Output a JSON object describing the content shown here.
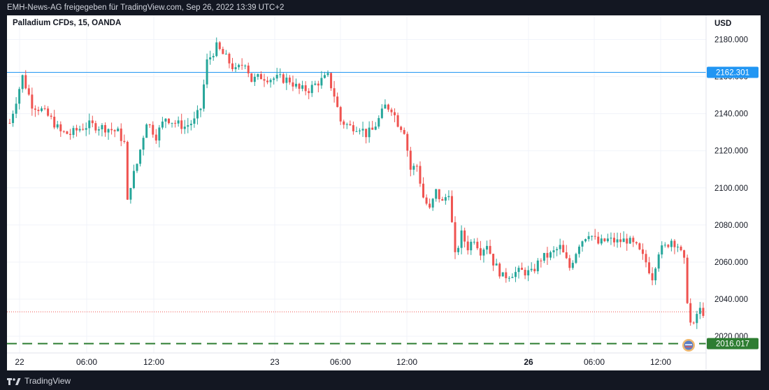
{
  "header": {
    "publish_text": "EMH-News-AG freigegeben für TradingView.com, Sep 26, 2022 13:39 UTC+2"
  },
  "chart": {
    "symbol": "Palladium CFDs, 15, OANDA",
    "currency": "USD"
  },
  "footer": {
    "brand": "TradingView"
  },
  "colors": {
    "up": "#26a69a",
    "down": "#ef5350",
    "resistance": "#2196f3",
    "support": "#2e7d32",
    "last_price": "#ef5350",
    "grid": "#f0f3fa",
    "axis_text": "#131722"
  },
  "chart_data": {
    "type": "candlestick",
    "y_axis": {
      "unit": "USD",
      "ticks": [
        2020,
        2040,
        2060,
        2080,
        2100,
        2120,
        2140,
        2160,
        2180
      ],
      "tick_labels": [
        "2020.000",
        "2040.000",
        "2060.000",
        "2080.000",
        "2100.000",
        "2120.000",
        "2140.000",
        "2160.000",
        "2180.000"
      ],
      "range": [
        2011,
        2193
      ]
    },
    "x_axis": {
      "tick_labels": [
        "22",
        "06:00",
        "12:00",
        "23",
        "06:00",
        "12:00",
        "26",
        "06:00",
        "12:00"
      ],
      "bold_ticks": [
        "26"
      ]
    },
    "levels": [
      {
        "value": 2162.301,
        "label": "2162.301",
        "style": "solid",
        "color": "#2196f3"
      },
      {
        "value": 2016.017,
        "label": "2016.017",
        "style": "dashed",
        "color": "#2e7d32"
      }
    ],
    "last_price": 2033.2,
    "price_path": [
      [
        0,
        2135
      ],
      [
        4,
        2160
      ],
      [
        7,
        2145
      ],
      [
        10,
        2142
      ],
      [
        13,
        2137
      ],
      [
        16,
        2130
      ],
      [
        19,
        2129
      ],
      [
        22,
        2132
      ],
      [
        25,
        2134
      ],
      [
        28,
        2133
      ],
      [
        31,
        2132
      ],
      [
        34,
        2130
      ],
      [
        36,
        2124
      ],
      [
        37,
        2092
      ],
      [
        38,
        2102
      ],
      [
        40,
        2113
      ],
      [
        43,
        2136
      ],
      [
        46,
        2128
      ],
      [
        49,
        2138
      ],
      [
        52,
        2135
      ],
      [
        55,
        2133
      ],
      [
        58,
        2136
      ],
      [
        60,
        2143
      ],
      [
        62,
        2168
      ],
      [
        65,
        2176
      ],
      [
        68,
        2170
      ],
      [
        71,
        2163
      ],
      [
        74,
        2168
      ],
      [
        76,
        2158
      ],
      [
        79,
        2160
      ],
      [
        82,
        2159
      ],
      [
        85,
        2159
      ],
      [
        88,
        2158
      ],
      [
        91,
        2153
      ],
      [
        94,
        2153
      ],
      [
        97,
        2157
      ],
      [
        100,
        2160
      ],
      [
        102,
        2150
      ],
      [
        104,
        2136
      ],
      [
        107,
        2133
      ],
      [
        110,
        2133
      ],
      [
        112,
        2129
      ],
      [
        114,
        2131
      ],
      [
        116,
        2137
      ],
      [
        118,
        2144
      ],
      [
        120,
        2143
      ],
      [
        122,
        2135
      ],
      [
        124,
        2131
      ],
      [
        126,
        2110
      ],
      [
        128,
        2112
      ],
      [
        130,
        2095
      ],
      [
        132,
        2088
      ],
      [
        134,
        2098
      ],
      [
        136,
        2092
      ],
      [
        138,
        2098
      ],
      [
        140,
        2063
      ],
      [
        142,
        2075
      ],
      [
        144,
        2068
      ],
      [
        146,
        2073
      ],
      [
        148,
        2066
      ],
      [
        150,
        2070
      ],
      [
        152,
        2060
      ],
      [
        155,
        2052
      ],
      [
        158,
        2054
      ],
      [
        161,
        2055
      ],
      [
        164,
        2054
      ],
      [
        167,
        2062
      ],
      [
        170,
        2064
      ],
      [
        173,
        2068
      ],
      [
        176,
        2057
      ],
      [
        179,
        2070
      ],
      [
        182,
        2076
      ],
      [
        185,
        2070
      ],
      [
        188,
        2072
      ],
      [
        191,
        2071
      ],
      [
        194,
        2072
      ],
      [
        197,
        2068
      ],
      [
        200,
        2060
      ],
      [
        202,
        2052
      ],
      [
        204,
        2066
      ],
      [
        206,
        2068
      ],
      [
        208,
        2072
      ],
      [
        210,
        2069
      ],
      [
        212,
        2060
      ],
      [
        213,
        2040
      ],
      [
        214,
        2027
      ],
      [
        215,
        2025
      ],
      [
        216,
        2032
      ],
      [
        217,
        2034
      ],
      [
        218,
        2033
      ]
    ]
  }
}
